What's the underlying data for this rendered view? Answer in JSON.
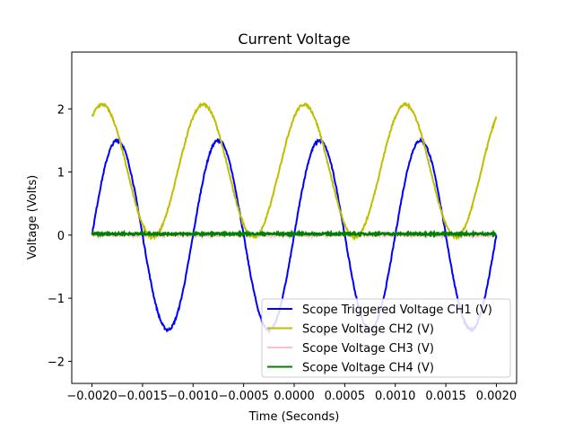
{
  "chart_data": {
    "type": "line",
    "title": "Current Voltage",
    "xlabel": "Time (Seconds)",
    "ylabel": "Voltage (Volts)",
    "xlim": [
      -0.0022,
      0.0022
    ],
    "ylim": [
      -2.35,
      2.9
    ],
    "x_ticks": [
      -0.002,
      -0.0015,
      -0.001,
      -0.0005,
      0.0,
      0.0005,
      0.001,
      0.0015,
      0.002
    ],
    "x_tick_labels": [
      "−0.0020",
      "−0.0015",
      "−0.0010",
      "−0.0005",
      "0.0000",
      "0.0005",
      "0.0010",
      "0.0015",
      "0.0020"
    ],
    "y_ticks": [
      -2,
      -1,
      0,
      1,
      2
    ],
    "y_tick_labels": [
      "−2",
      "−1",
      "0",
      "1",
      "2"
    ],
    "grid": false,
    "legend_position": "lower-right",
    "x_range": [
      -0.002,
      0.002
    ],
    "series": [
      {
        "name": "Scope Triggered Voltage CH1 (V)",
        "color": "#0000ff",
        "waveform": "sine",
        "amplitude": 1.5,
        "offset": 0.0,
        "frequency_hz": 1000,
        "zero_crossing_rising_s": -0.002
      },
      {
        "name": "Scope Voltage CH2 (V)",
        "color": "#bfbf00",
        "waveform": "sine",
        "amplitude": 1.05,
        "offset": 1.02,
        "frequency_hz": 1000,
        "peak_s": -0.0019
      },
      {
        "name": "Scope Voltage CH3 (V)",
        "color": "#ffc0cb",
        "waveform": "flat",
        "value": 0.0
      },
      {
        "name": "Scope Voltage CH4 (V)",
        "color": "#008000",
        "waveform": "flat",
        "value": 0.02
      }
    ]
  }
}
